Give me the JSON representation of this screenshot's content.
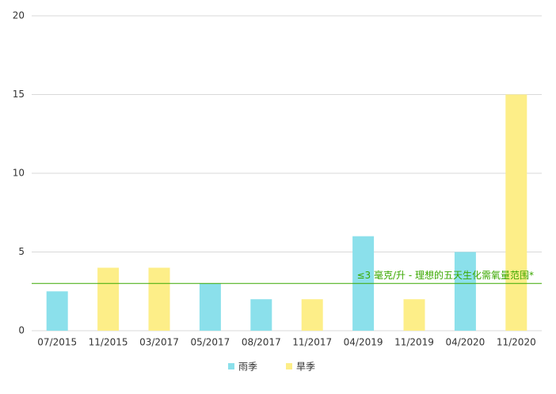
{
  "chart_data": {
    "type": "bar",
    "categories": [
      "07/2015",
      "11/2015",
      "03/2017",
      "05/2017",
      "08/2017",
      "11/2017",
      "04/2019",
      "11/2019",
      "04/2020",
      "11/2020"
    ],
    "series": [
      {
        "name": "雨季",
        "color": "#8be0eb",
        "values": [
          2.5,
          null,
          null,
          3,
          2,
          null,
          6,
          null,
          5,
          null
        ]
      },
      {
        "name": "旱季",
        "color": "#fdee88",
        "values": [
          null,
          4,
          4,
          null,
          null,
          2,
          null,
          2,
          null,
          15
        ]
      }
    ],
    "ylim": [
      0,
      20
    ],
    "yticks": [
      0,
      5,
      10,
      15,
      20
    ],
    "grid": true,
    "reference_line": {
      "value": 3,
      "label": "≤3 毫克/升 - 理想的五天生化需氧量范围*",
      "color": "#3aa800"
    },
    "legend": "bottom"
  }
}
